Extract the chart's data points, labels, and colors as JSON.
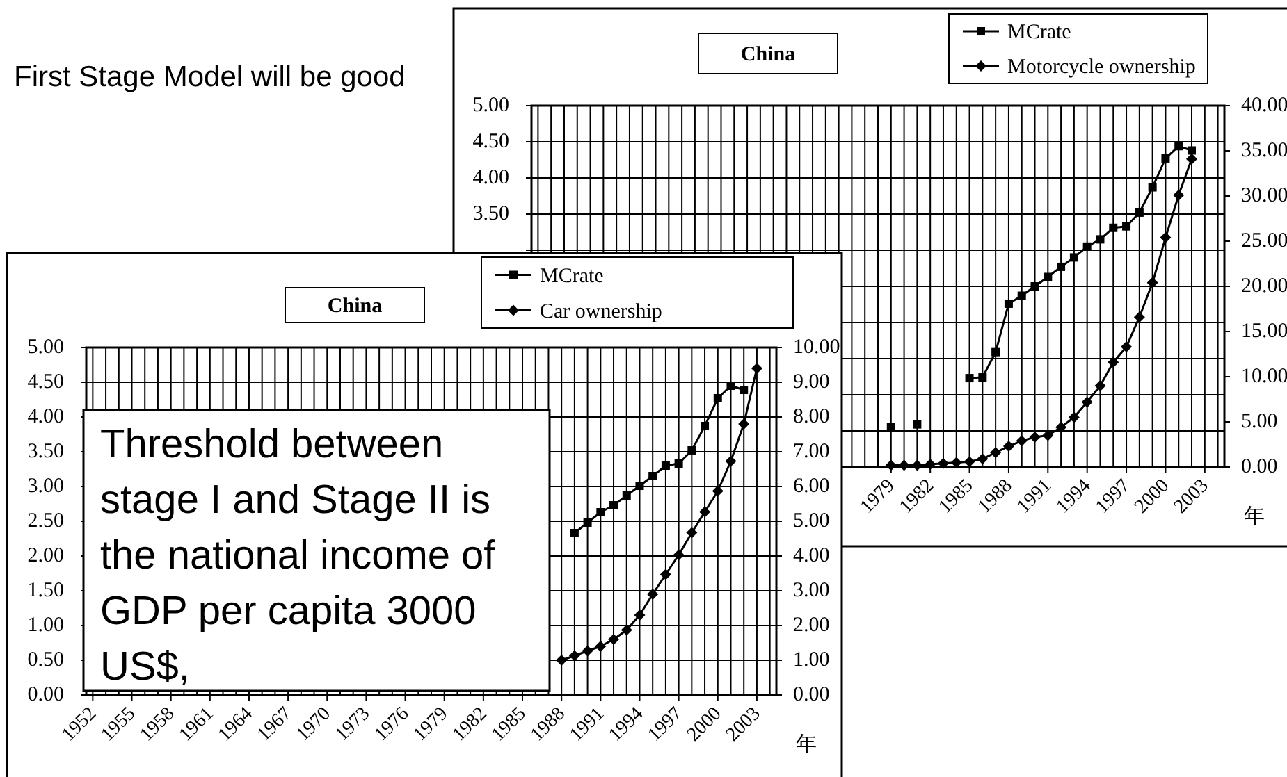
{
  "chart_data": [
    {
      "type": "line",
      "title": "China",
      "xlabel": "年",
      "legend": "top right",
      "grid": true,
      "categories": [
        null,
        null,
        null,
        null,
        null,
        null,
        null,
        null,
        null,
        null,
        null,
        null,
        null,
        null,
        null,
        null,
        null,
        null,
        null,
        null,
        null,
        null,
        null,
        null,
        null,
        null,
        null,
        "1979",
        null,
        null,
        "1982",
        null,
        null,
        "1985",
        null,
        null,
        "1988",
        null,
        null,
        "1991",
        null,
        null,
        "1994",
        null,
        null,
        "1997",
        null,
        null,
        "2000",
        null,
        null,
        "2003",
        null
      ],
      "ylim": [
        0,
        5
      ],
      "yticks": [
        {
          "value": 0,
          "label": null
        },
        {
          "value": 0.5,
          "label": null
        },
        {
          "value": 1,
          "label": null
        },
        {
          "value": 1.5,
          "label": null
        },
        {
          "value": 2,
          "label": null
        },
        {
          "value": 2.5,
          "label": null
        },
        {
          "value": 3,
          "label": null
        },
        {
          "value": 3.5,
          "label": "3.50"
        },
        {
          "value": 4,
          "label": "4.00"
        },
        {
          "value": 4.5,
          "label": "4.50"
        },
        {
          "value": 5,
          "label": "5.00"
        }
      ],
      "y2lim": [
        0,
        40
      ],
      "y2ticks": [
        {
          "value": 0,
          "label": "0.00"
        },
        {
          "value": 5,
          "label": "5.00"
        },
        {
          "value": 10,
          "label": "10.00"
        },
        {
          "value": 15,
          "label": "15.00"
        },
        {
          "value": 20,
          "label": "20.00"
        },
        {
          "value": 25,
          "label": "25.00"
        },
        {
          "value": 30,
          "label": "30.00"
        },
        {
          "value": 35,
          "label": "35.00"
        },
        {
          "value": 40,
          "label": "40.00"
        }
      ],
      "annotations": [
        "First Stage Model will be good"
      ],
      "series": [
        {
          "name": "MCrate",
          "color": "#000000",
          "marker": "square",
          "values": [
            null,
            null,
            null,
            null,
            null,
            null,
            null,
            null,
            null,
            null,
            null,
            null,
            null,
            null,
            null,
            null,
            null,
            null,
            null,
            null,
            null,
            null,
            null,
            null,
            null,
            null,
            null,
            0.55,
            null,
            0.59,
            null,
            null,
            null,
            1.23,
            1.24,
            1.59,
            2.26,
            2.37,
            2.5,
            2.63,
            2.77,
            2.9,
            3.05,
            3.15,
            3.31,
            3.33,
            3.52,
            3.87,
            4.27,
            4.44,
            4.38,
            null,
            null
          ]
        },
        {
          "name": "Motorcycle ownership",
          "color": "#000000",
          "marker": "diamond",
          "axis": "y2",
          "values": [
            null,
            null,
            null,
            null,
            null,
            null,
            null,
            null,
            null,
            null,
            null,
            null,
            null,
            null,
            null,
            null,
            null,
            null,
            null,
            null,
            null,
            null,
            null,
            null,
            null,
            null,
            null,
            0.2,
            0.2,
            0.2,
            0.3,
            0.4,
            0.5,
            0.6,
            0.9,
            1.6,
            2.3,
            2.9,
            3.3,
            3.5,
            4.4,
            5.5,
            7.2,
            9.0,
            11.6,
            13.3,
            16.6,
            20.4,
            25.4,
            30.1,
            34.1,
            null,
            null
          ]
        }
      ]
    },
    {
      "type": "line",
      "title": "China",
      "xlabel": "年",
      "legend": "top right",
      "grid": true,
      "categories": [
        "1952",
        null,
        null,
        "1955",
        null,
        null,
        "1958",
        null,
        null,
        "1961",
        null,
        null,
        "1964",
        null,
        null,
        "1967",
        null,
        null,
        "1970",
        null,
        null,
        "1973",
        null,
        null,
        "1976",
        null,
        null,
        "1979",
        null,
        null,
        "1982",
        null,
        null,
        "1985",
        null,
        null,
        "1988",
        null,
        null,
        "1991",
        null,
        null,
        "1994",
        null,
        null,
        "1997",
        null,
        null,
        "2000",
        null,
        null,
        "2003",
        null
      ],
      "ylim": [
        0,
        5
      ],
      "yticks": [
        {
          "value": 0,
          "label": "0.00"
        },
        {
          "value": 0.5,
          "label": "0.50"
        },
        {
          "value": 1,
          "label": "1.00"
        },
        {
          "value": 1.5,
          "label": "1.50"
        },
        {
          "value": 2,
          "label": "2.00"
        },
        {
          "value": 2.5,
          "label": "2.50"
        },
        {
          "value": 3,
          "label": "3.00"
        },
        {
          "value": 3.5,
          "label": "3.50"
        },
        {
          "value": 4,
          "label": "4.00"
        },
        {
          "value": 4.5,
          "label": "4.50"
        },
        {
          "value": 5,
          "label": "5.00"
        }
      ],
      "y2lim": [
        0,
        10
      ],
      "y2ticks": [
        {
          "value": 0,
          "label": "0.00"
        },
        {
          "value": 1,
          "label": "1.00"
        },
        {
          "value": 2,
          "label": "2.00"
        },
        {
          "value": 3,
          "label": "3.00"
        },
        {
          "value": 4,
          "label": "4.00"
        },
        {
          "value": 5,
          "label": "5.00"
        },
        {
          "value": 6,
          "label": "6.00"
        },
        {
          "value": 7,
          "label": "7.00"
        },
        {
          "value": 8,
          "label": "8.00"
        },
        {
          "value": 9,
          "label": "9.00"
        },
        {
          "value": 10,
          "label": "10.00"
        }
      ],
      "annotations": [
        "Threshold between stage I and Stage II is the national income of GDP per capita 3000 US$,"
      ],
      "series": [
        {
          "name": "MCrate",
          "color": "#000000",
          "marker": "square",
          "values": [
            null,
            null,
            null,
            null,
            null,
            null,
            null,
            null,
            null,
            null,
            null,
            null,
            null,
            null,
            null,
            null,
            null,
            null,
            null,
            null,
            null,
            null,
            null,
            null,
            null,
            null,
            null,
            null,
            null,
            null,
            null,
            null,
            null,
            null,
            null,
            null,
            null,
            2.33,
            2.48,
            2.63,
            2.73,
            2.87,
            3.01,
            3.15,
            3.3,
            3.33,
            3.52,
            3.87,
            4.27,
            4.45,
            4.39,
            null,
            null
          ]
        },
        {
          "name": "Car ownership",
          "color": "#000000",
          "marker": "diamond",
          "axis": "y2",
          "values": [
            null,
            null,
            null,
            null,
            null,
            null,
            null,
            null,
            null,
            null,
            null,
            null,
            null,
            null,
            null,
            null,
            null,
            null,
            null,
            null,
            null,
            null,
            null,
            null,
            null,
            null,
            null,
            null,
            null,
            null,
            null,
            null,
            null,
            null,
            null,
            null,
            1.0,
            1.13,
            1.27,
            1.4,
            1.6,
            1.87,
            2.3,
            2.9,
            3.47,
            4.03,
            4.67,
            5.27,
            5.87,
            6.73,
            7.8,
            9.4,
            null
          ]
        }
      ]
    }
  ]
}
